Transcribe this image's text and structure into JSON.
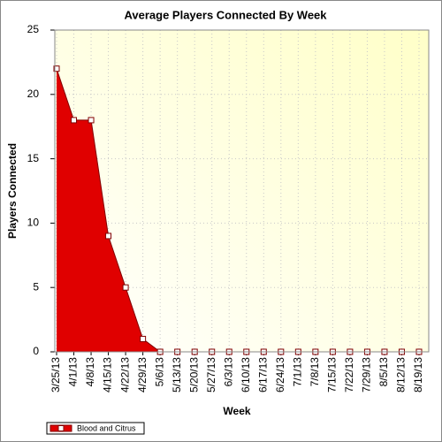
{
  "chart_data": {
    "type": "area",
    "title": "Average Players Connected By Week",
    "x_label": "Week",
    "y_label": "Players Connected",
    "categories": [
      "3/25/13",
      "4/1/13",
      "4/8/13",
      "4/15/13",
      "4/22/13",
      "4/29/13",
      "5/6/13",
      "5/13/13",
      "5/20/13",
      "5/27/13",
      "6/3/13",
      "6/10/13",
      "6/17/13",
      "6/24/13",
      "7/1/13",
      "7/8/13",
      "7/15/13",
      "7/22/13",
      "7/29/13",
      "8/5/13",
      "8/12/13",
      "8/19/13"
    ],
    "series": [
      {
        "name": "Blood and Citrus",
        "color": "#e00000",
        "values": [
          22,
          18,
          18,
          9,
          5,
          1,
          0,
          0,
          0,
          0,
          0,
          0,
          0,
          0,
          0,
          0,
          0,
          0,
          0,
          0,
          0,
          0
        ]
      }
    ],
    "ylim": [
      0,
      25
    ],
    "yticks": [
      0,
      5,
      10,
      15,
      20,
      25
    ],
    "grid": true,
    "legend": "bottom-left"
  }
}
